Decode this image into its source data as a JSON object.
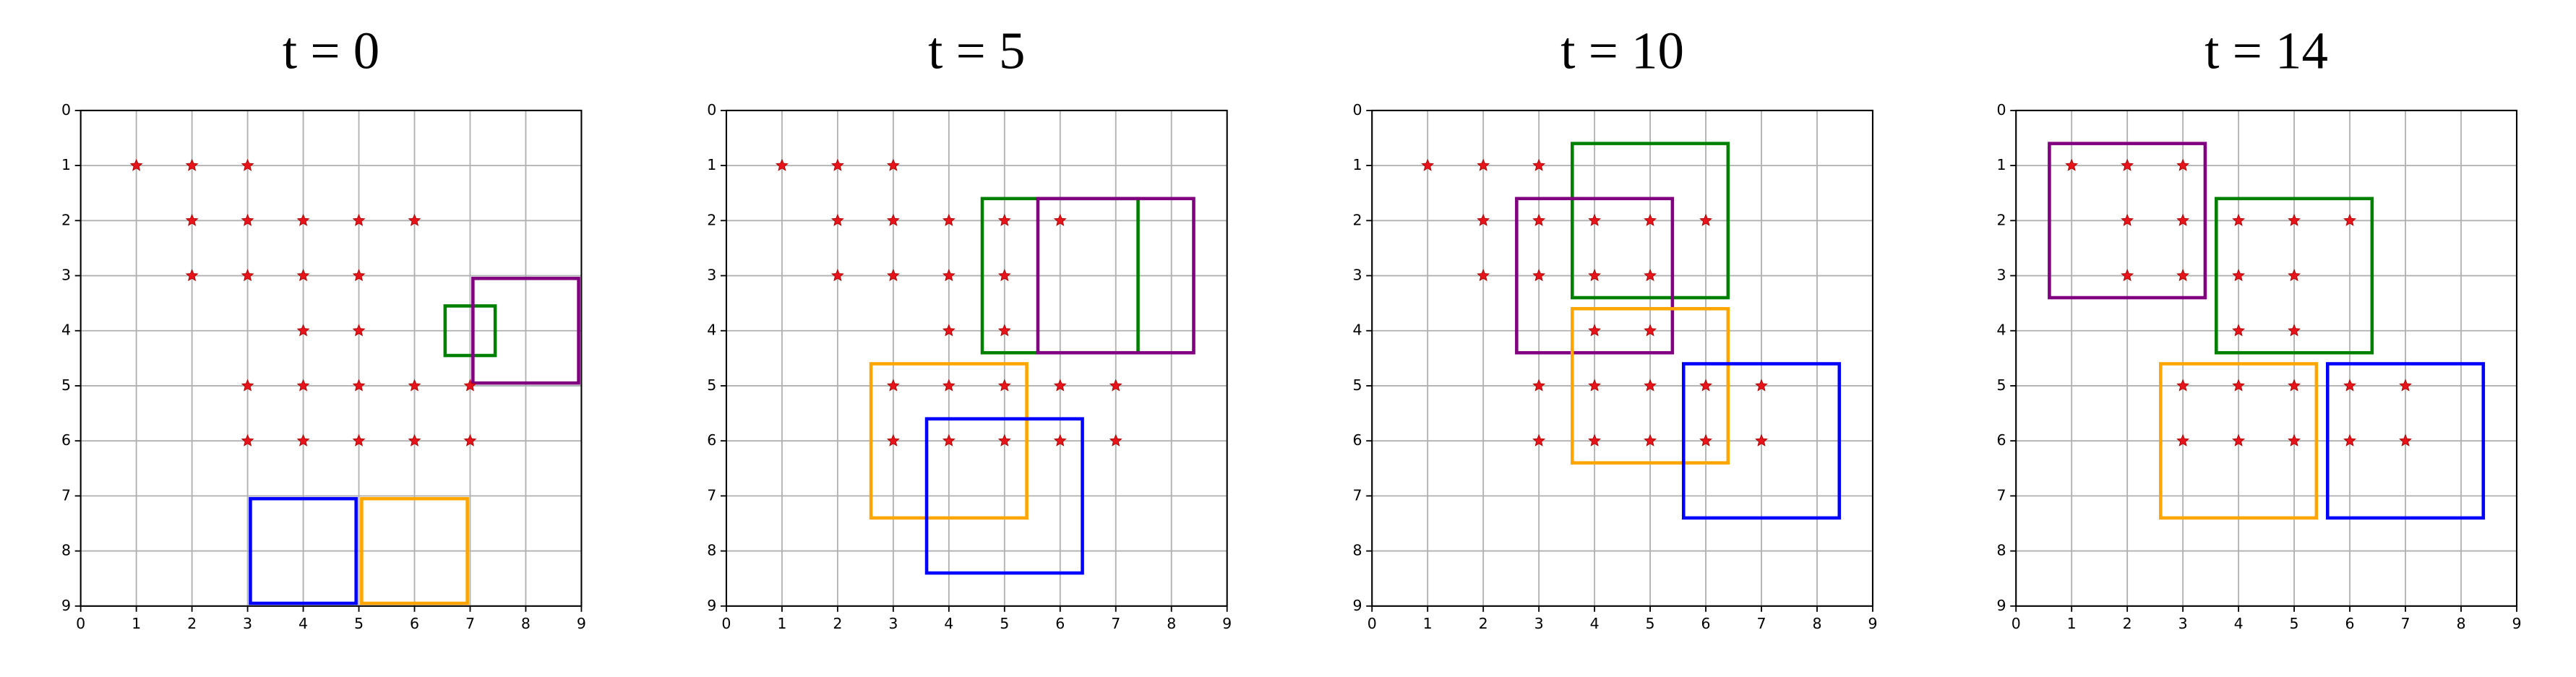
{
  "chart_data": [
    {
      "type": "scatter",
      "title": "t = 0",
      "color": "#e8141c",
      "x": [
        1,
        2,
        3,
        2,
        3,
        4,
        5,
        6,
        2,
        3,
        4,
        5,
        4,
        5,
        3,
        4,
        5,
        6,
        7,
        3,
        4,
        5,
        6,
        7
      ],
      "y": [
        1,
        1,
        1,
        2,
        2,
        2,
        2,
        2,
        3,
        3,
        3,
        3,
        4,
        4,
        5,
        5,
        5,
        5,
        5,
        6,
        6,
        6,
        6,
        6
      ],
      "boxes": [
        {
          "color": "#0000ff",
          "bounds": [
            3.05,
            7.05,
            4.95,
            8.95
          ]
        },
        {
          "color": "#ffa500",
          "bounds": [
            5.05,
            7.05,
            6.95,
            8.95
          ]
        },
        {
          "color": "#008000",
          "bounds": [
            6.55,
            3.55,
            7.45,
            4.45
          ]
        },
        {
          "color": "#800080",
          "bounds": [
            7.05,
            3.05,
            8.95,
            4.95
          ]
        }
      ],
      "xlim": [
        0,
        9
      ],
      "ylim": [
        9,
        0
      ],
      "xticks": [
        0,
        1,
        2,
        3,
        4,
        5,
        6,
        7,
        8,
        9
      ],
      "yticks": [
        0,
        1,
        2,
        3,
        4,
        5,
        6,
        7,
        8,
        9
      ],
      "grid": true
    },
    {
      "type": "scatter",
      "title": "t = 5",
      "color": "#e8141c",
      "x": [
        1,
        2,
        3,
        2,
        3,
        4,
        5,
        6,
        2,
        3,
        4,
        5,
        4,
        5,
        3,
        4,
        5,
        6,
        7,
        3,
        4,
        5,
        6,
        7
      ],
      "y": [
        1,
        1,
        1,
        2,
        2,
        2,
        2,
        2,
        3,
        3,
        3,
        3,
        4,
        4,
        5,
        5,
        5,
        5,
        5,
        6,
        6,
        6,
        6,
        6
      ],
      "boxes": [
        {
          "color": "#008000",
          "bounds": [
            4.6,
            1.6,
            7.4,
            4.4
          ]
        },
        {
          "color": "#800080",
          "bounds": [
            5.6,
            1.6,
            8.4,
            4.4
          ]
        },
        {
          "color": "#ffa500",
          "bounds": [
            2.6,
            4.6,
            5.4,
            7.4
          ]
        },
        {
          "color": "#0000ff",
          "bounds": [
            3.6,
            5.6,
            6.4,
            8.4
          ]
        }
      ],
      "xlim": [
        0,
        9
      ],
      "ylim": [
        9,
        0
      ],
      "xticks": [
        0,
        1,
        2,
        3,
        4,
        5,
        6,
        7,
        8,
        9
      ],
      "yticks": [
        0,
        1,
        2,
        3,
        4,
        5,
        6,
        7,
        8,
        9
      ],
      "grid": true
    },
    {
      "type": "scatter",
      "title": "t = 10",
      "color": "#e8141c",
      "x": [
        1,
        2,
        3,
        2,
        3,
        4,
        5,
        6,
        2,
        3,
        4,
        5,
        4,
        5,
        3,
        4,
        5,
        6,
        7,
        3,
        4,
        5,
        6,
        7
      ],
      "y": [
        1,
        1,
        1,
        2,
        2,
        2,
        2,
        2,
        3,
        3,
        3,
        3,
        4,
        4,
        5,
        5,
        5,
        5,
        5,
        6,
        6,
        6,
        6,
        6
      ],
      "boxes": [
        {
          "color": "#008000",
          "bounds": [
            3.6,
            0.6,
            6.4,
            3.4
          ]
        },
        {
          "color": "#800080",
          "bounds": [
            2.6,
            1.6,
            5.4,
            4.4
          ]
        },
        {
          "color": "#ffa500",
          "bounds": [
            3.6,
            3.6,
            6.4,
            6.4
          ]
        },
        {
          "color": "#0000ff",
          "bounds": [
            5.6,
            4.6,
            8.4,
            7.4
          ]
        }
      ],
      "xlim": [
        0,
        9
      ],
      "ylim": [
        9,
        0
      ],
      "xticks": [
        0,
        1,
        2,
        3,
        4,
        5,
        6,
        7,
        8,
        9
      ],
      "yticks": [
        0,
        1,
        2,
        3,
        4,
        5,
        6,
        7,
        8,
        9
      ],
      "grid": true
    },
    {
      "type": "scatter",
      "title": "t = 14",
      "color": "#e8141c",
      "x": [
        1,
        2,
        3,
        2,
        3,
        4,
        5,
        6,
        2,
        3,
        4,
        5,
        4,
        5,
        3,
        4,
        5,
        6,
        7,
        3,
        4,
        5,
        6,
        7
      ],
      "y": [
        1,
        1,
        1,
        2,
        2,
        2,
        2,
        2,
        3,
        3,
        3,
        3,
        4,
        4,
        5,
        5,
        5,
        5,
        5,
        6,
        6,
        6,
        6,
        6
      ],
      "boxes": [
        {
          "color": "#800080",
          "bounds": [
            0.6,
            0.6,
            3.4,
            3.4
          ]
        },
        {
          "color": "#008000",
          "bounds": [
            3.6,
            1.6,
            6.4,
            4.4
          ]
        },
        {
          "color": "#ffa500",
          "bounds": [
            2.6,
            4.6,
            5.4,
            7.4
          ]
        },
        {
          "color": "#0000ff",
          "bounds": [
            5.6,
            4.6,
            8.4,
            7.4
          ]
        }
      ],
      "xlim": [
        0,
        9
      ],
      "ylim": [
        9,
        0
      ],
      "xticks": [
        0,
        1,
        2,
        3,
        4,
        5,
        6,
        7,
        8,
        9
      ],
      "yticks": [
        0,
        1,
        2,
        3,
        4,
        5,
        6,
        7,
        8,
        9
      ],
      "grid": true
    }
  ]
}
